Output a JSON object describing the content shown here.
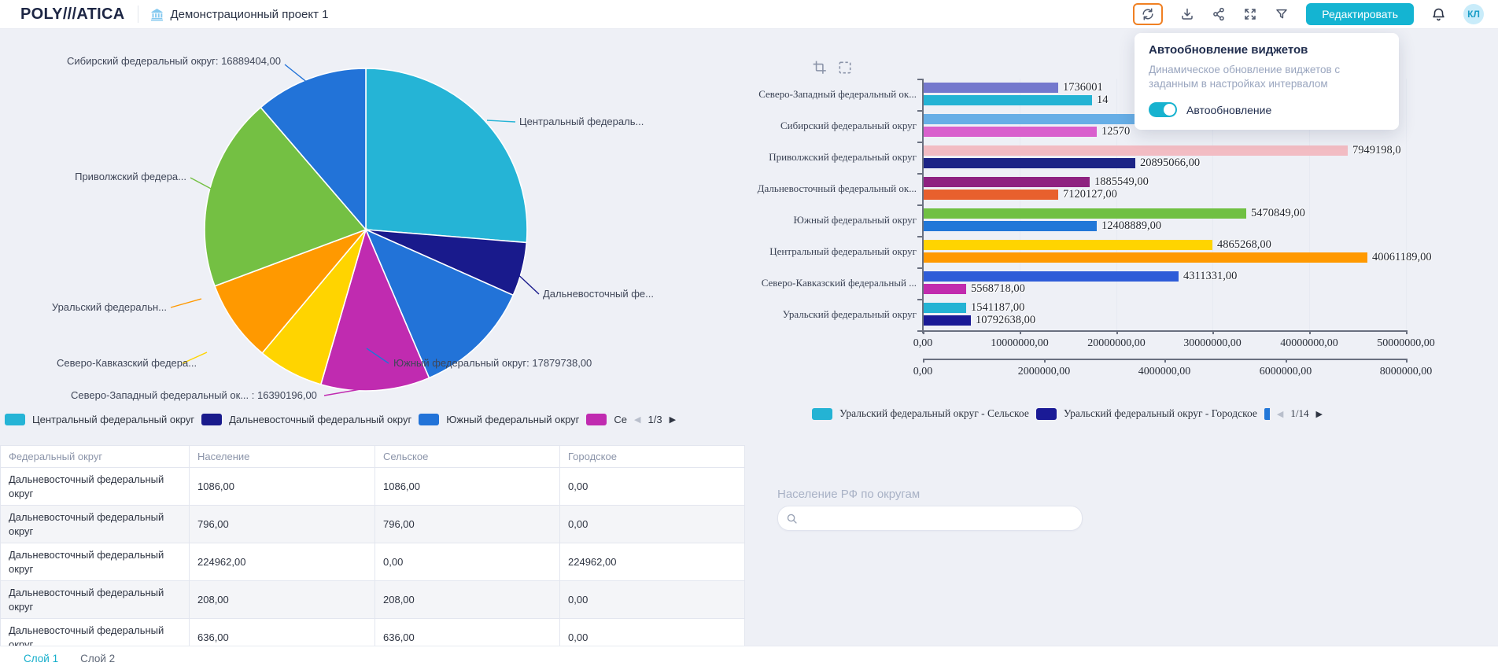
{
  "header": {
    "logo": "POLY///ATICA",
    "title": "Демонстрационный проект 1",
    "edit_button": "Редактировать",
    "avatar_initials": "КЛ",
    "toolbar_icons": [
      "refresh-icon",
      "download-icon",
      "share-icon",
      "fullscreen-icon",
      "filter-icon",
      "bell-icon"
    ],
    "accent_color": "#14b4d2",
    "highlight_color": "#f08023"
  },
  "popup": {
    "title": "Автообновление виджетов",
    "description": "Динамическое обновление виджетов с заданным в настройках интервалом",
    "toggle_label": "Автообновление",
    "toggle_on": true
  },
  "chart_data": [
    {
      "id": "pie-population",
      "type": "pie",
      "slices": [
        {
          "name": "Центральный федеральный округ",
          "label": "Центральный федераль...",
          "value": null,
          "color": "#25b4d6",
          "deg": 94.6
        },
        {
          "name": "Дальневосточный федеральный округ",
          "label": "Дальневосточный фе...",
          "value": null,
          "color": "#191a8c",
          "deg": 19.4
        },
        {
          "name": "Южный федеральный округ",
          "label": "Южный федеральный округ: 17879738,00",
          "value": 17879738.0,
          "color": "#2273d8",
          "deg": 42.9
        },
        {
          "name": "Северо-Западный федеральный округ",
          "label": "Северо-Западный федеральный ок... : 16390196,00",
          "value": 16390196.0,
          "color": "#c02bb0",
          "deg": 39.3
        },
        {
          "name": "Северо-Кавказский федеральный округ",
          "label": "Северо-Кавказский федера...",
          "value": null,
          "color": "#ffd400",
          "deg": 23.8
        },
        {
          "name": "Уральский федеральный округ",
          "label": "Уральский федеральн...",
          "value": null,
          "color": "#ff9900",
          "deg": 29.5
        },
        {
          "name": "Приволжский федеральный округ",
          "label": "Приволжский федера...",
          "value": null,
          "color": "#74c043",
          "deg": 69.8
        },
        {
          "name": "Сибирский федеральный округ",
          "label": "Сибирский федеральный округ: 16889404,00",
          "value": 16889404.0,
          "color": "#2273d8",
          "deg": 40.7
        }
      ],
      "legend": {
        "items": [
          {
            "label": "Центральный федеральный округ",
            "color": "#25b4d6"
          },
          {
            "label": "Дальневосточный федеральный округ",
            "color": "#191a8c"
          },
          {
            "label": "Южный федеральный округ",
            "color": "#2273d8"
          },
          {
            "label": "Се",
            "color": "#c02bb0"
          }
        ],
        "pagination": "1/3"
      }
    },
    {
      "id": "bars-population",
      "type": "bar",
      "orientation": "horizontal",
      "groups": [
        {
          "category": "Северо-Западный федеральный ок...",
          "bars": [
            {
              "color": "#7478cd",
              "frac": 0.28,
              "label": "1736001"
            },
            {
              "color": "#24b3d4",
              "frac": 0.35,
              "label": "14"
            }
          ]
        },
        {
          "category": "Сибирский федеральный округ",
          "bars": [
            {
              "color": "#67aee6",
              "frac": 0.55,
              "label": ""
            },
            {
              "color": "#d960cd",
              "frac": 0.36,
              "label": "12570"
            }
          ]
        },
        {
          "category": "Приволжский федеральный округ",
          "bars": [
            {
              "color": "#f2bcc3",
              "frac": 0.88,
              "label": "7949198,0"
            },
            {
              "color": "#1c2486",
              "frac": 0.44,
              "label": "20895066,00"
            }
          ]
        },
        {
          "category": "Дальневосточный федеральный ок...",
          "bars": [
            {
              "color": "#8e2180",
              "frac": 0.345,
              "label": "1885549,00"
            },
            {
              "color": "#e8602d",
              "frac": 0.28,
              "label": "7120127,00"
            }
          ]
        },
        {
          "category": "Южный федеральный округ",
          "bars": [
            {
              "color": "#70c043",
              "frac": 0.67,
              "label": "5470849,00"
            },
            {
              "color": "#2277d8",
              "frac": 0.36,
              "label": "12408889,00"
            }
          ]
        },
        {
          "category": "Центральный федеральный округ",
          "bars": [
            {
              "color": "#ffd400",
              "frac": 0.6,
              "label": "4865268,00"
            },
            {
              "color": "#ff9900",
              "frac": 0.92,
              "label": "40061189,00"
            }
          ]
        },
        {
          "category": "Северо-Кавказский федеральный ...",
          "bars": [
            {
              "color": "#2e5cd8",
              "frac": 0.53,
              "label": "4311331,00"
            },
            {
              "color": "#c12bae",
              "frac": 0.09,
              "label": "5568718,00"
            }
          ]
        },
        {
          "category": "Уральский федеральный округ",
          "bars": [
            {
              "color": "#24b3d4",
              "frac": 0.09,
              "label": "1541187,00"
            },
            {
              "color": "#1a1a96",
              "frac": 0.1,
              "label": "10792638,00"
            }
          ]
        }
      ],
      "axis_primary": {
        "ticks": [
          "0,00",
          "10000000,00",
          "20000000,00",
          "30000000,00",
          "40000000,00",
          "50000000,00"
        ],
        "range": [
          0,
          50000000
        ]
      },
      "axis_secondary": {
        "ticks": [
          "0,00",
          "2000000,00",
          "4000000,00",
          "6000000,00",
          "8000000,00"
        ],
        "range": [
          0,
          8000000
        ]
      },
      "legend": {
        "items": [
          {
            "label": "Уральский федеральный округ - Сельское",
            "color": "#24b3d4"
          },
          {
            "label": "Уральский федеральный округ - Городское",
            "color": "#1a1a96"
          }
        ],
        "partial_color": "#2277d8",
        "pagination": "1/14"
      }
    }
  ],
  "table": {
    "columns": [
      "Федеральный округ",
      "Население",
      "Сельское",
      "Городское"
    ],
    "rows": [
      [
        "Дальневосточный федеральный округ",
        "1086,00",
        "1086,00",
        "0,00"
      ],
      [
        "Дальневосточный федеральный округ",
        "796,00",
        "796,00",
        "0,00"
      ],
      [
        "Дальневосточный федеральный округ",
        "224962,00",
        "0,00",
        "224962,00"
      ],
      [
        "Дальневосточный федеральный округ",
        "208,00",
        "208,00",
        "0,00"
      ],
      [
        "Дальневосточный федеральный округ",
        "636,00",
        "636,00",
        "0,00"
      ]
    ]
  },
  "search_widget": {
    "title": "Население РФ по округам",
    "placeholder": "",
    "value": ""
  },
  "layers": {
    "tabs": [
      "Слой 1",
      "Слой 2"
    ],
    "active": "Слой 1"
  }
}
